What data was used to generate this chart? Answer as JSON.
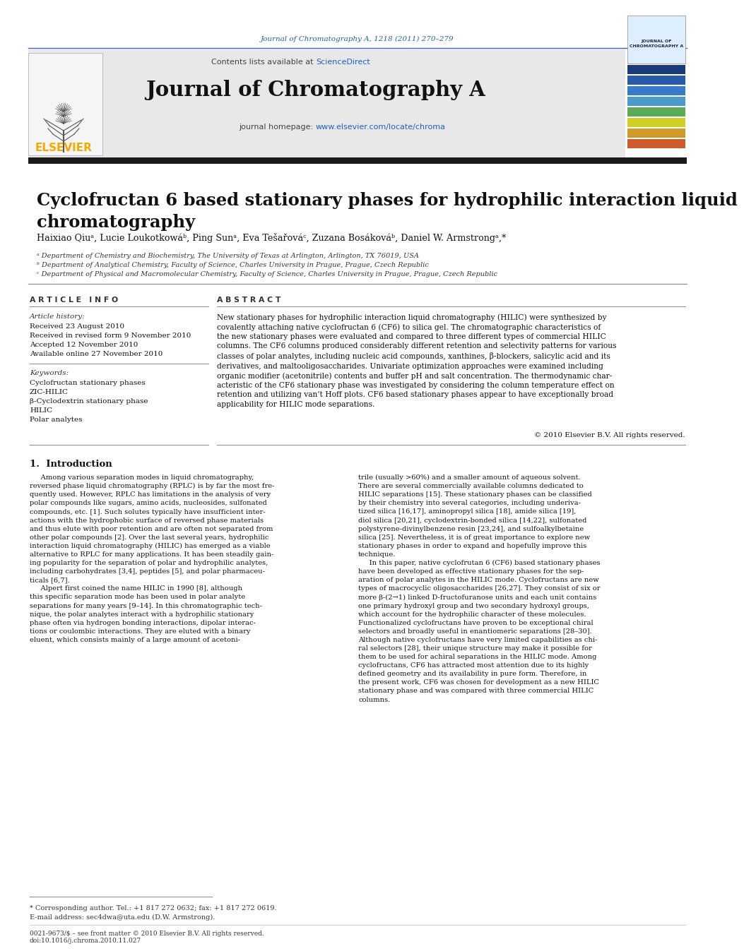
{
  "bg_color": "#ffffff",
  "header_journal_text": "Journal of Chromatography A, 1218 (2011) 270–279",
  "header_journal_color": "#2060a0",
  "header_bg_color": "#e8e8e8",
  "journal_name": "Journal of Chromatography A",
  "journal_homepage_color": "#2060c0",
  "elsevier_color": "#f5a800",
  "article_title": "Cyclofructan 6 based stationary phases for hydrophilic interaction liquid\nchromatography",
  "authors": "Haixiao Qiuᵃ, Lucie Loukotkowáᵇ, Ping Sunᵃ, Eva Tešařováᶜ, Zuzana Bosákováᵇ, Daniel W. Armstrongᵃ,*",
  "affil_a": "ᵃ Department of Chemistry and Biochemistry, The University of Texas at Arlington, Arlington, TX 76019, USA",
  "affil_b": "ᵇ Department of Analytical Chemistry, Faculty of Science, Charles University in Prague, Prague, Czech Republic",
  "affil_c": "ᶜ Department of Physical and Macromolecular Chemistry, Faculty of Science, Charles University in Prague, Prague, Czech Republic",
  "article_info_label": "A R T I C L E   I N F O",
  "abstract_label": "A B S T R A C T",
  "article_history_label": "Article history:",
  "received1": "Received 23 August 2010",
  "received2": "Received in revised form 9 November 2010",
  "accepted": "Accepted 12 November 2010",
  "available": "Available online 27 November 2010",
  "keywords_label": "Keywords:",
  "keyword1": "Cyclofructan stationary phases",
  "keyword2": "ZIC-HILIC",
  "keyword3": "β-Cyclodextrin stationary phase",
  "keyword4": "HILIC",
  "keyword5": "Polar analytes",
  "abstract_text": "New stationary phases for hydrophilic interaction liquid chromatography (HILIC) were synthesized by\ncovalently attaching native cyclofructan 6 (CF6) to silica gel. The chromatographic characteristics of\nthe new stationary phases were evaluated and compared to three different types of commercial HILIC\ncolumns. The CF6 columns produced considerably different retention and selectivity patterns for various\nclasses of polar analytes, including nucleic acid compounds, xanthines, β-blockers, salicylic acid and its\nderivatives, and maltooligosaccharides. Univariate optimization approaches were examined including\norganic modifier (acetonitrile) contents and buffer pH and salt concentration. The thermodynamic char-\nacteristic of the CF6 stationary phase was investigated by considering the column temperature effect on\nretention and utilizing van’t Hoff plots. CF6 based stationary phases appear to have exceptionally broad\napplicability for HILIC mode separations.",
  "copyright": "© 2010 Elsevier B.V. All rights reserved.",
  "intro_heading": "1.  Introduction",
  "intro_col1": "     Among various separation modes in liquid chromatography,\nreversed phase liquid chromatography (RPLC) is by far the most fre-\nquently used. However, RPLC has limitations in the analysis of very\npolar compounds like sugars, amino acids, nucleosides, sulfonated\ncompounds, etc. [1]. Such solutes typically have insufficient inter-\nactions with the hydrophobic surface of reversed phase materials\nand thus elute with poor retention and are often not separated from\nother polar compounds [2]. Over the last several years, hydrophilic\ninteraction liquid chromatography (HILIC) has emerged as a viable\nalternative to RPLC for many applications. It has been steadily gain-\ning popularity for the separation of polar and hydrophilic analytes,\nincluding carbohydrates [3,4], peptides [5], and polar pharmaceu-\nticals [6,7].\n     Alpert first coined the name HILIC in 1990 [8], although\nthis specific separation mode has been used in polar analyte\nseparations for many years [9–14]. In this chromatographic tech-\nnique, the polar analytes interact with a hydrophilic stationary\nphase often via hydrogen bonding interactions, dipolar interac-\ntions or coulombic interactions. They are eluted with a binary\neluent, which consists mainly of a large amount of acetoni-",
  "intro_col2": "trile (usually >60%) and a smaller amount of aqueous solvent.\nThere are several commercially available columns dedicated to\nHILIC separations [15]. These stationary phases can be classified\nby their chemistry into several categories, including underiva-\ntized silica [16,17], aminopropyl silica [18], amide silica [19],\ndiol silica [20,21], cyclodextrin-bonded silica [14,22], sulfonated\npolystyrene-divinylbenzene resin [23,24], and sulfoalkylbetaine\nsilica [25]. Nevertheless, it is of great importance to explore new\nstationary phases in order to expand and hopefully improve this\ntechnique.\n     In this paper, native cyclofrutan 6 (CF6) based stationary phases\nhave been developed as effective stationary phases for the sep-\naration of polar analytes in the HILIC mode. Cyclofructans are new\ntypes of macrocyclic oligosaccharides [26,27]. They consist of six or\nmore β-(2→1) linked D-fructofuranose units and each unit contains\none primary hydroxyl group and two secondary hydroxyl groups,\nwhich account for the hydrophilic character of these molecules.\nFunctionalized cyclofructans have proven to be exceptional chiral\nselectors and broadly useful in enantiomeric separations [28–30].\nAlthough native cyclofructans have very limited capabilities as chi-\nral selectors [28], their unique structure may make it possible for\nthem to be used for achiral separations in the HILIC mode. Among\ncyclofructans, CF6 has attracted most attention due to its highly\ndefined geometry and its availability in pure form. Therefore, in\nthe present work, CF6 was chosen for development as a new HILIC\nstationary phase and was compared with three commercial HILIC\ncolumns.",
  "footnote_corresp": "* Corresponding author. Tel.: +1 817 272 0632; fax: +1 817 272 0619.",
  "footnote_email": "E-mail address: sec4dwa@uta.edu (D.W. Armstrong).",
  "footer_issn": "0021-9673/$ – see front matter © 2010 Elsevier B.V. All rights reserved.",
  "footer_doi": "doi:10.1016/j.chroma.2010.11.027",
  "sidebar_colors": [
    "#1a3a7a",
    "#2a5aaa",
    "#3a7aca",
    "#4a9aca",
    "#5aaa5a",
    "#cfcf2a",
    "#cf9a2a",
    "#cf5a2a"
  ]
}
